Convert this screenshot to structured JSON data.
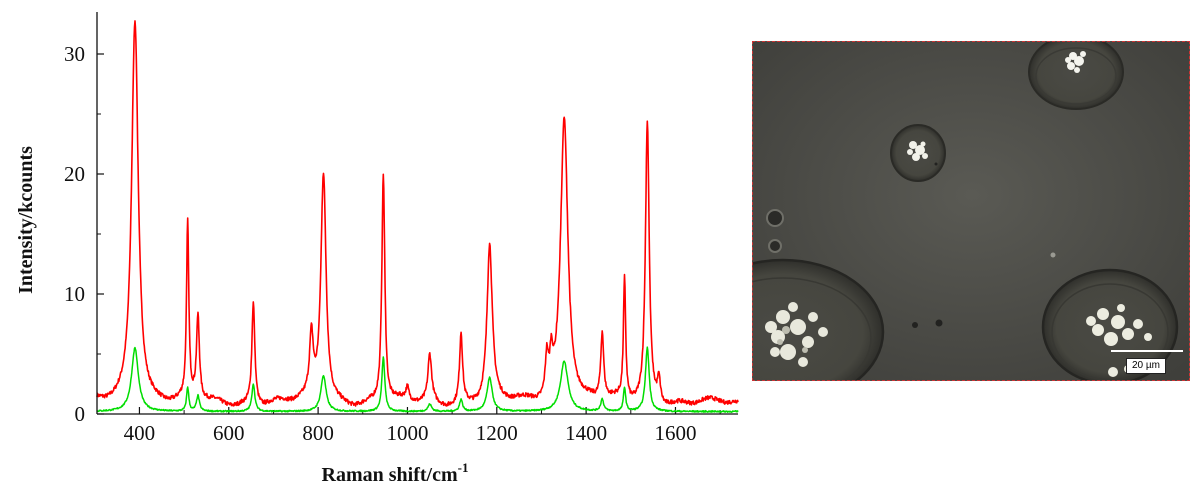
{
  "chart_data": {
    "type": "line",
    "title": "",
    "xlabel": "Raman shift/cm",
    "xlabel_superscript": "-1",
    "ylabel": "Intensity/kcounts",
    "xlim": [
      305,
      1740
    ],
    "ylim": [
      0,
      33.5
    ],
    "x_ticks": [
      400,
      600,
      800,
      1000,
      1200,
      1400,
      1600
    ],
    "y_ticks": [
      0,
      10,
      20,
      30
    ],
    "grid": false,
    "legend": "none",
    "series": [
      {
        "color": "#ff0000",
        "baseline": 0.9,
        "peaks": [
          {
            "x": 390,
            "height": 32.2,
            "width": 9
          },
          {
            "x": 508,
            "height": 14.6,
            "width": 3
          },
          {
            "x": 531,
            "height": 7.0,
            "width": 4
          },
          {
            "x": 655,
            "height": 8.5,
            "width": 4
          },
          {
            "x": 785,
            "height": 5.0,
            "width": 5
          },
          {
            "x": 812,
            "height": 19.2,
            "width": 7
          },
          {
            "x": 946,
            "height": 19.0,
            "width": 4
          },
          {
            "x": 1000,
            "height": 1.0,
            "width": 4
          },
          {
            "x": 1050,
            "height": 3.9,
            "width": 5
          },
          {
            "x": 1120,
            "height": 5.8,
            "width": 4
          },
          {
            "x": 1184,
            "height": 12.9,
            "width": 7
          },
          {
            "x": 1312,
            "height": 3.2,
            "width": 4
          },
          {
            "x": 1322,
            "height": 2.8,
            "width": 4
          },
          {
            "x": 1351,
            "height": 23.9,
            "width": 10
          },
          {
            "x": 1436,
            "height": 5.5,
            "width": 4
          },
          {
            "x": 1486,
            "height": 10.0,
            "width": 3
          },
          {
            "x": 1537,
            "height": 23.4,
            "width": 5
          },
          {
            "x": 1563,
            "height": 2.0,
            "width": 4
          }
        ]
      },
      {
        "color": "#00dd00",
        "baseline": 0.2,
        "peaks": [
          {
            "x": 390,
            "height": 5.3,
            "width": 9
          },
          {
            "x": 508,
            "height": 2.0,
            "width": 3
          },
          {
            "x": 531,
            "height": 1.3,
            "width": 4
          },
          {
            "x": 655,
            "height": 2.3,
            "width": 4
          },
          {
            "x": 812,
            "height": 3.0,
            "width": 7
          },
          {
            "x": 946,
            "height": 4.5,
            "width": 4
          },
          {
            "x": 1050,
            "height": 0.6,
            "width": 5
          },
          {
            "x": 1120,
            "height": 1.0,
            "width": 4
          },
          {
            "x": 1184,
            "height": 2.8,
            "width": 7
          },
          {
            "x": 1351,
            "height": 4.2,
            "width": 10
          },
          {
            "x": 1436,
            "height": 1.0,
            "width": 4
          },
          {
            "x": 1486,
            "height": 2.0,
            "width": 3
          },
          {
            "x": 1537,
            "height": 5.3,
            "width": 5
          }
        ]
      }
    ]
  },
  "micrograph": {
    "scale_bar_label": "20 µm",
    "background_color": "#4d4d48"
  }
}
